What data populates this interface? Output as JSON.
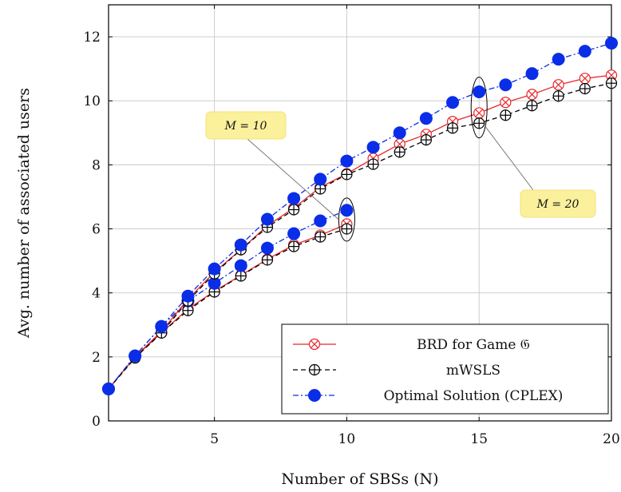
{
  "chart_data": {
    "type": "line",
    "xlabel": "Number of SBSs (N)",
    "ylabel": "Avg. number of associated users",
    "xlim": [
      1,
      20
    ],
    "ylim": [
      0,
      13
    ],
    "xticks": [
      5,
      10,
      15,
      20
    ],
    "yticks": [
      0,
      2,
      4,
      6,
      8,
      10,
      12
    ],
    "grid": true,
    "legend_position": "bottom-right",
    "series": [
      {
        "name": "BRD for Game 𝔊",
        "group": "M = 10",
        "color": "#e8262a",
        "marker": "circle-x",
        "dash": "solid",
        "x": [
          1,
          2,
          3,
          4,
          5,
          6,
          7,
          8,
          9,
          10
        ],
        "y": [
          1.0,
          2.0,
          2.75,
          3.5,
          4.05,
          4.55,
          5.05,
          5.5,
          5.8,
          6.15
        ]
      },
      {
        "name": "mWSLS",
        "group": "M = 10",
        "color": "#000000",
        "marker": "circle-plus",
        "dash": "dashed",
        "x": [
          1,
          2,
          3,
          4,
          5,
          6,
          7,
          8,
          9,
          10
        ],
        "y": [
          1.0,
          1.97,
          2.75,
          3.45,
          4.03,
          4.53,
          5.03,
          5.45,
          5.75,
          6.0
        ]
      },
      {
        "name": "Optimal Solution (CPLEX)",
        "group": "M = 10",
        "color": "#0a2ee8",
        "marker": "filled-circle",
        "dash": "dashdot",
        "x": [
          1,
          2,
          3,
          4,
          5,
          6,
          7,
          8,
          9,
          10
        ],
        "y": [
          1.0,
          2.03,
          2.95,
          3.75,
          4.3,
          4.85,
          5.4,
          5.85,
          6.25,
          6.58
        ]
      },
      {
        "name": "BRD for Game 𝔊",
        "group": "M = 20",
        "color": "#e8262a",
        "marker": "circle-x",
        "dash": "solid",
        "x": [
          1,
          2,
          3,
          4,
          5,
          6,
          7,
          8,
          9,
          10,
          11,
          12,
          13,
          14,
          15,
          16,
          17,
          18,
          19,
          20
        ],
        "y": [
          1.0,
          2.0,
          2.8,
          3.8,
          4.65,
          5.35,
          6.1,
          6.65,
          7.3,
          7.72,
          8.2,
          8.65,
          8.95,
          9.35,
          9.62,
          9.95,
          10.2,
          10.5,
          10.7,
          10.8
        ]
      },
      {
        "name": "mWSLS",
        "group": "M = 20",
        "color": "#000000",
        "marker": "circle-plus",
        "dash": "dashed",
        "x": [
          1,
          2,
          3,
          4,
          5,
          6,
          7,
          8,
          9,
          10,
          11,
          12,
          13,
          14,
          15,
          16,
          17,
          18,
          19,
          20
        ],
        "y": [
          1.0,
          1.97,
          2.75,
          3.75,
          4.6,
          5.35,
          6.05,
          6.6,
          7.25,
          7.7,
          8.02,
          8.4,
          8.78,
          9.15,
          9.3,
          9.55,
          9.85,
          10.15,
          10.38,
          10.55
        ]
      },
      {
        "name": "Optimal Solution (CPLEX)",
        "group": "M = 20",
        "color": "#0a2ee8",
        "marker": "filled-circle",
        "dash": "dashdot",
        "x": [
          1,
          2,
          3,
          4,
          5,
          6,
          7,
          8,
          9,
          10,
          11,
          12,
          13,
          14,
          15,
          16,
          17,
          18,
          19,
          20
        ],
        "y": [
          1.0,
          2.03,
          2.95,
          3.9,
          4.75,
          5.5,
          6.3,
          6.95,
          7.55,
          8.12,
          8.55,
          9.0,
          9.45,
          9.95,
          10.28,
          10.5,
          10.85,
          11.3,
          11.55,
          11.8
        ]
      }
    ],
    "legend": [
      {
        "label": "BRD for Game 𝔊",
        "color": "#e8262a",
        "marker": "circle-x",
        "dash": "solid"
      },
      {
        "label": "mWSLS",
        "color": "#000000",
        "marker": "circle-plus",
        "dash": "dashed"
      },
      {
        "label": "Optimal Solution (CPLEX)",
        "color": "#0a2ee8",
        "marker": "filled-circle",
        "dash": "dashdot"
      }
    ],
    "annotations": [
      {
        "label": "M = 10",
        "target": "M = 10 curves at N = 10"
      },
      {
        "label": "M = 20",
        "target": "M = 20 curves at N = 15"
      }
    ]
  }
}
